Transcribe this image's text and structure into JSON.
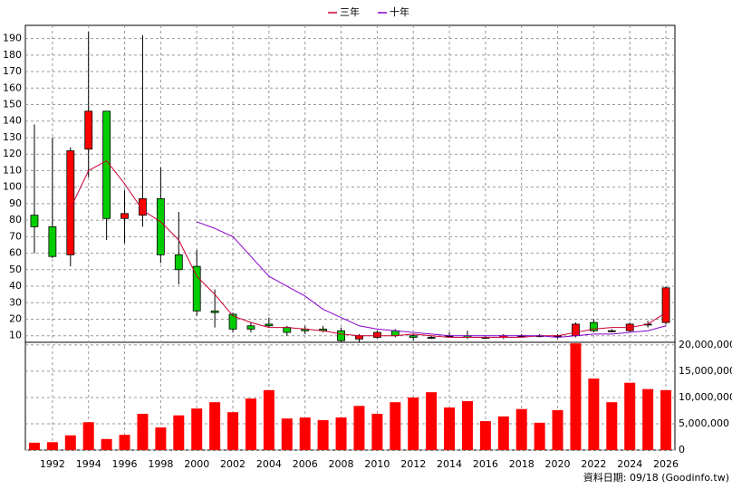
{
  "chart_data": {
    "type": "candlestick",
    "x": [
      1991,
      1992,
      1993,
      1994,
      1995,
      1996,
      1997,
      1998,
      1999,
      2000,
      2001,
      2002,
      2003,
      2004,
      2005,
      2006,
      2007,
      2008,
      2009,
      2010,
      2011,
      2012,
      2013,
      2014,
      2015,
      2016,
      2017,
      2018,
      2019,
      2020,
      2021,
      2022,
      2023,
      2024,
      2025,
      2026
    ],
    "open": [
      83,
      76,
      59,
      123,
      146,
      81,
      83,
      93,
      59,
      52,
      25,
      23,
      16,
      17,
      15,
      14,
      14,
      13,
      8,
      9,
      13,
      10,
      9,
      10,
      10,
      9,
      9,
      10,
      10,
      10,
      10,
      18,
      13,
      13,
      17,
      18
    ],
    "high": [
      138,
      130,
      124,
      194,
      146,
      98,
      192,
      112,
      85,
      62,
      38,
      24,
      18,
      21,
      16,
      16,
      16,
      15,
      11,
      13,
      14,
      11,
      10,
      12,
      13,
      10,
      11,
      11,
      11,
      11,
      18,
      20,
      14,
      18,
      19,
      40
    ],
    "low": [
      60,
      57,
      52,
      106,
      68,
      66,
      76,
      54,
      41,
      22,
      15,
      12,
      12,
      15,
      10,
      11,
      12,
      6,
      6,
      8,
      9,
      7,
      8,
      9,
      8,
      8,
      8,
      9,
      9,
      8,
      9,
      12,
      12,
      12,
      15,
      17
    ],
    "close": [
      76,
      58,
      122,
      146,
      81,
      84,
      93,
      59,
      50,
      25,
      24,
      14,
      14,
      16,
      12,
      13,
      13,
      7,
      10,
      12,
      10,
      9,
      9,
      10,
      9,
      9,
      10,
      10,
      10,
      10,
      17,
      13,
      13,
      17,
      17,
      39
    ],
    "up_color": "#ff0000",
    "down_color": "#00cc00",
    "series": [
      {
        "name": "三年",
        "color": "#cc0033",
        "values": [
          null,
          null,
          87,
          110,
          116,
          102,
          86,
          79,
          68,
          46,
          35,
          22,
          18,
          15,
          15,
          14,
          13,
          11,
          10,
          10,
          10,
          11,
          10,
          9,
          9,
          9,
          9,
          9,
          10,
          10,
          12,
          14,
          15,
          15,
          17,
          24
        ]
      },
      {
        "name": "十年",
        "color": "#8800cc",
        "values": [
          null,
          null,
          null,
          null,
          null,
          null,
          null,
          null,
          null,
          79,
          75,
          70,
          58,
          46,
          40,
          34,
          26,
          21,
          16,
          14,
          13,
          12,
          11,
          10,
          10,
          10,
          10,
          10,
          10,
          9,
          10,
          11,
          11,
          12,
          13,
          16
        ]
      }
    ],
    "xlim": [
      1990.5,
      2026.5
    ],
    "xticks": [
      1992,
      1994,
      1996,
      1998,
      2000,
      2002,
      2004,
      2006,
      2008,
      2010,
      2012,
      2014,
      2016,
      2018,
      2020,
      2022,
      2024,
      2026
    ],
    "ylim": [
      6,
      198
    ],
    "yticks": [
      10,
      20,
      30,
      40,
      50,
      60,
      70,
      80,
      90,
      100,
      110,
      120,
      130,
      140,
      150,
      160,
      170,
      180,
      190
    ],
    "grid": true,
    "volume": {
      "color": "#ff0000",
      "values": [
        1400000,
        1500000,
        2800000,
        5300000,
        2100000,
        2900000,
        6900000,
        4300000,
        6600000,
        7900000,
        9100000,
        7200000,
        9800000,
        11400000,
        6000000,
        6200000,
        5700000,
        6200000,
        8400000,
        6900000,
        9100000,
        10000000,
        11000000,
        8100000,
        9300000,
        5500000,
        6400000,
        7800000,
        5200000,
        7600000,
        20300000,
        13600000,
        9100000,
        12800000,
        11600000,
        11400000
      ],
      "ylim": [
        0,
        20500000
      ],
      "yticks": [
        0,
        {
          "value": 5000000,
          "label": "5,000,000"
        },
        {
          "value": 10000000,
          "label": "10,000,000"
        },
        {
          "value": 15000000,
          "label": "15,000,000"
        },
        {
          "value": 20000000,
          "label": "20,000,000"
        }
      ]
    },
    "source": "資料日期: 09/18  (Goodinfo.tw)"
  }
}
